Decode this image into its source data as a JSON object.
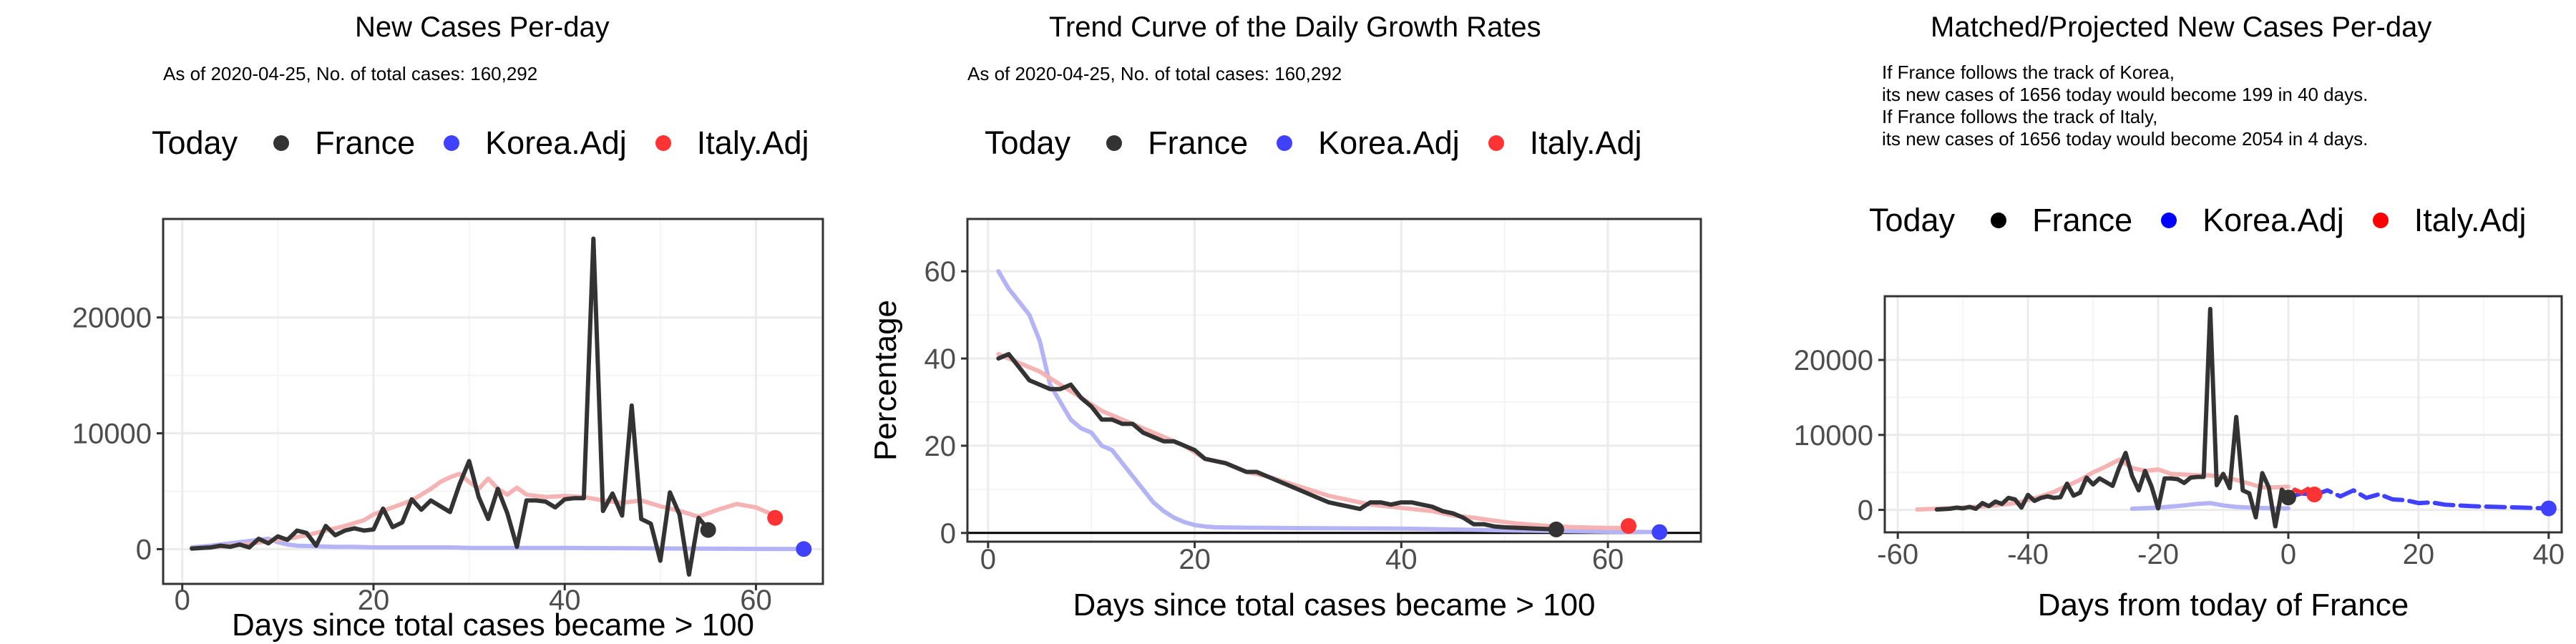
{
  "colors": {
    "France": "#333333",
    "Korea.Adj": "#4040ff",
    "Italy.Adj": "#ff3333",
    "Korea.Adj_line": "#b3b3f5",
    "Italy.Adj_line": "#f5b3b3",
    "gridMajor": "#ebebeb",
    "gridMinor": "#f4f4f4",
    "panelBorder": "#333333"
  },
  "legend": {
    "title": "Today",
    "items": [
      "France",
      "Korea.Adj",
      "Italy.Adj"
    ]
  },
  "panels": [
    {
      "title": "New Cases Per-day",
      "subtitle": "As of 2020-04-25, No. of total cases: 160,292"
    },
    {
      "title": "Trend Curve of the Daily Growth Rates",
      "subtitle": "As of 2020-04-25, No. of total cases: 160,292"
    },
    {
      "title": "Matched/Projected New Cases Per-day",
      "subtitle_lines": [
        "If France follows the track of Korea,",
        "its new cases of 1656 today would become 199 in 40 days.",
        "If France follows the track of Italy,",
        "its new cases of 1656 today would become 2054 in 4 days."
      ]
    }
  ],
  "chart_data": [
    {
      "type": "line",
      "title": "New Cases Per-day",
      "subtitle": "As of 2020-04-25, No. of total cases: 160,292",
      "xlabel": "Days since total cases became > 100",
      "ylabel": "",
      "xlim": [
        -2,
        67
      ],
      "ylim": [
        -3000,
        28500
      ],
      "xticks": [
        0,
        20,
        40,
        60
      ],
      "yticks": [
        0,
        10000,
        20000
      ],
      "grid": true,
      "legend": {
        "title": "Today",
        "position": "top"
      },
      "series": [
        {
          "name": "France",
          "x": [
            1,
            2,
            3,
            4,
            5,
            6,
            7,
            8,
            9,
            10,
            11,
            12,
            13,
            14,
            15,
            16,
            17,
            18,
            19,
            20,
            21,
            22,
            23,
            24,
            25,
            26,
            27,
            28,
            29,
            30,
            31,
            32,
            33,
            34,
            35,
            36,
            37,
            38,
            39,
            40,
            41,
            42,
            43,
            44,
            45,
            46,
            47,
            48,
            49,
            50,
            51,
            52,
            53,
            54,
            55
          ],
          "y": [
            50,
            100,
            150,
            300,
            200,
            400,
            150,
            900,
            500,
            1100,
            800,
            1600,
            1400,
            300,
            2000,
            1200,
            1600,
            1800,
            1600,
            1700,
            3500,
            1900,
            2300,
            4300,
            3400,
            4200,
            3700,
            3200,
            5600,
            7600,
            4500,
            2600,
            5200,
            3100,
            200,
            4200,
            4200,
            4100,
            3600,
            4300,
            4400,
            4400,
            26800,
            3300,
            4800,
            2900,
            12400,
            2600,
            2200,
            -1000,
            4900,
            3000,
            -2200,
            2700,
            1700
          ]
        },
        {
          "name": "Korea.Adj",
          "x": [
            1,
            3,
            5,
            7,
            8,
            9,
            10,
            11,
            12,
            14,
            16,
            18,
            20,
            22,
            25,
            28,
            30,
            35,
            40,
            45,
            50,
            55,
            60,
            65
          ],
          "y": [
            150,
            300,
            500,
            700,
            800,
            900,
            600,
            400,
            300,
            250,
            200,
            200,
            150,
            150,
            150,
            150,
            100,
            100,
            100,
            80,
            60,
            40,
            20,
            10
          ]
        },
        {
          "name": "Italy.Adj",
          "x": [
            1,
            3,
            5,
            7,
            9,
            11,
            13,
            15,
            17,
            19,
            20,
            22,
            24,
            26,
            27,
            28,
            29,
            30,
            31,
            32,
            33,
            34,
            35,
            36,
            38,
            40,
            42,
            44,
            46,
            48,
            50,
            52,
            54,
            56,
            58,
            60,
            62
          ],
          "y": [
            50,
            150,
            300,
            450,
            700,
            900,
            1200,
            1600,
            2000,
            2500,
            3000,
            3600,
            4200,
            5200,
            5800,
            6200,
            6500,
            5800,
            5200,
            6100,
            5200,
            4700,
            5300,
            4700,
            4500,
            4600,
            4500,
            4200,
            4000,
            4200,
            3700,
            3300,
            2800,
            3400,
            3900,
            3600,
            2900
          ]
        }
      ],
      "today_points": [
        {
          "name": "France",
          "x": 55,
          "y": 1656
        },
        {
          "name": "Korea.Adj",
          "x": 65,
          "y": 10
        },
        {
          "name": "Italy.Adj",
          "x": 62,
          "y": 2700
        }
      ]
    },
    {
      "type": "line",
      "title": "Trend Curve of the Daily Growth Rates",
      "subtitle": "As of 2020-04-25, No. of total cases: 160,292",
      "xlabel": "Days since total cases became > 100",
      "ylabel": "Percentage",
      "xlim": [
        -2,
        69
      ],
      "ylim": [
        -2,
        72
      ],
      "xticks": [
        0,
        20,
        40,
        60
      ],
      "yticks": [
        0,
        20,
        40,
        60
      ],
      "grid": true,
      "hline": 0,
      "legend": {
        "title": "Today",
        "position": "top"
      },
      "series": [
        {
          "name": "France",
          "x": [
            1,
            2,
            3,
            4,
            5,
            6,
            7,
            8,
            9,
            10,
            11,
            12,
            13,
            14,
            15,
            16,
            17,
            18,
            19,
            20,
            21,
            22,
            23,
            24,
            25,
            26,
            27,
            28,
            29,
            30,
            31,
            32,
            33,
            34,
            35,
            36,
            37,
            38,
            39,
            40,
            41,
            42,
            43,
            44,
            45,
            46,
            47,
            48,
            49,
            50,
            51,
            52,
            53,
            54,
            55
          ],
          "y": [
            40,
            41,
            38,
            35,
            34,
            33,
            33,
            34,
            31,
            29,
            26,
            26,
            25,
            25,
            23,
            22,
            21,
            21,
            20,
            19,
            17,
            16.5,
            16,
            15,
            14,
            14,
            13,
            12,
            11,
            10,
            9,
            8,
            7,
            6.5,
            6,
            5.5,
            7,
            7,
            6.5,
            7,
            7,
            6.5,
            6,
            5,
            4.5,
            3.5,
            2,
            2,
            1.5,
            1.3,
            1.2,
            1.1,
            1,
            0.9,
            0.8
          ]
        },
        {
          "name": "Korea.Adj",
          "x": [
            1,
            2,
            3,
            4,
            5,
            6,
            7,
            8,
            9,
            10,
            11,
            12,
            13,
            14,
            15,
            16,
            17,
            18,
            19,
            20,
            21,
            22,
            25,
            30,
            40,
            50,
            60,
            65
          ],
          "y": [
            60,
            56,
            53,
            50,
            44,
            34,
            30,
            26,
            24,
            23,
            20,
            19,
            16,
            13,
            10,
            7,
            5,
            3.5,
            2.5,
            1.8,
            1.5,
            1.3,
            1.2,
            1.1,
            1,
            0.6,
            0.3,
            0.2
          ]
        },
        {
          "name": "Italy.Adj",
          "x": [
            1,
            3,
            5,
            7,
            9,
            11,
            13,
            15,
            17,
            19,
            21,
            23,
            25,
            27,
            29,
            31,
            33,
            35,
            37,
            39,
            41,
            43,
            45,
            47,
            49,
            51,
            53,
            55,
            57,
            59,
            62
          ],
          "y": [
            41,
            39,
            37,
            34,
            31,
            28,
            26,
            24,
            22,
            20,
            17,
            16,
            14,
            13,
            11.5,
            10,
            8.5,
            7.5,
            6.5,
            6,
            5.5,
            5,
            4,
            3.5,
            2.8,
            2.2,
            1.8,
            1.5,
            1.3,
            1.2,
            1.1
          ]
        }
      ],
      "today_points": [
        {
          "name": "France",
          "x": 55,
          "y": 0.8
        },
        {
          "name": "Korea.Adj",
          "x": 65,
          "y": 0.2
        },
        {
          "name": "Italy.Adj",
          "x": 62,
          "y": 1.6
        }
      ]
    },
    {
      "type": "line",
      "title": "Matched/Projected New Cases Per-day",
      "xlabel": "Days from today of France",
      "ylabel": "",
      "xlim": [
        -62,
        42
      ],
      "ylim": [
        -3000,
        28500
      ],
      "xticks": [
        -60,
        -40,
        -20,
        0,
        20,
        40
      ],
      "yticks": [
        0,
        10000,
        20000
      ],
      "grid": true,
      "legend": {
        "title": "Today",
        "position": "top"
      },
      "series": [
        {
          "name": "France",
          "x": [
            -54,
            -53,
            -52,
            -51,
            -50,
            -49,
            -48,
            -47,
            -46,
            -45,
            -44,
            -43,
            -42,
            -41,
            -40,
            -39,
            -38,
            -37,
            -36,
            -35,
            -34,
            -33,
            -32,
            -31,
            -30,
            -29,
            -28,
            -27,
            -26,
            -25,
            -24,
            -23,
            -22,
            -21,
            -20,
            -19,
            -18,
            -17,
            -16,
            -15,
            -14,
            -13,
            -12,
            -11,
            -10,
            -9,
            -8,
            -7,
            -6,
            -5,
            -4,
            -3,
            -2,
            -1,
            0
          ],
          "y": [
            50,
            100,
            150,
            300,
            200,
            400,
            150,
            900,
            500,
            1100,
            800,
            1600,
            1400,
            300,
            2000,
            1200,
            1600,
            1800,
            1600,
            1700,
            3500,
            1900,
            2300,
            4300,
            3400,
            4200,
            3700,
            3200,
            5600,
            7600,
            4500,
            2600,
            5200,
            3100,
            200,
            4200,
            4200,
            4100,
            3600,
            4300,
            4400,
            4400,
            26800,
            3300,
            4800,
            2900,
            12400,
            2600,
            2200,
            -1000,
            4900,
            3000,
            -2200,
            2700,
            1656
          ]
        },
        {
          "name": "Korea.Adj",
          "x": [
            -24,
            -20,
            -16,
            -14,
            -12,
            -10,
            -8,
            -6,
            -4,
            -2,
            0
          ],
          "y": [
            150,
            300,
            600,
            800,
            900,
            600,
            400,
            300,
            250,
            200,
            200
          ]
        },
        {
          "name": "Italy.Adj",
          "x": [
            -57,
            -54,
            -50,
            -46,
            -42,
            -40,
            -38,
            -36,
            -34,
            -32,
            -30,
            -28,
            -26,
            -24,
            -22,
            -20,
            -18,
            -16,
            -14,
            -12,
            -10,
            -8,
            -6,
            -4,
            -2,
            0
          ],
          "y": [
            50,
            150,
            300,
            500,
            900,
            1300,
            1800,
            2400,
            3200,
            4000,
            5000,
            5800,
            6700,
            5600,
            5200,
            5400,
            4800,
            4700,
            4600,
            4600,
            4400,
            4000,
            3500,
            3000,
            3000,
            3100
          ]
        },
        {
          "name": "Korea.Adj (projected)",
          "x": [
            0,
            2,
            4,
            6,
            8,
            10,
            12,
            14,
            16,
            18,
            20,
            22,
            24,
            26,
            28,
            30,
            32,
            34,
            36,
            38,
            40
          ],
          "y": [
            1656,
            2200,
            2000,
            2600,
            1800,
            2600,
            1600,
            2100,
            1400,
            1300,
            900,
            1000,
            700,
            600,
            500,
            450,
            400,
            350,
            300,
            250,
            199
          ]
        },
        {
          "name": "Italy.Adj (projected)",
          "x": [
            0,
            1,
            2,
            3,
            4
          ],
          "y": [
            1656,
            2700,
            2300,
            2800,
            2054
          ]
        }
      ],
      "today_points": [
        {
          "name": "France",
          "x": 0,
          "y": 1656
        },
        {
          "name": "Korea.Adj",
          "x": 40,
          "y": 199
        },
        {
          "name": "Italy.Adj",
          "x": 4,
          "y": 2054
        }
      ]
    }
  ]
}
